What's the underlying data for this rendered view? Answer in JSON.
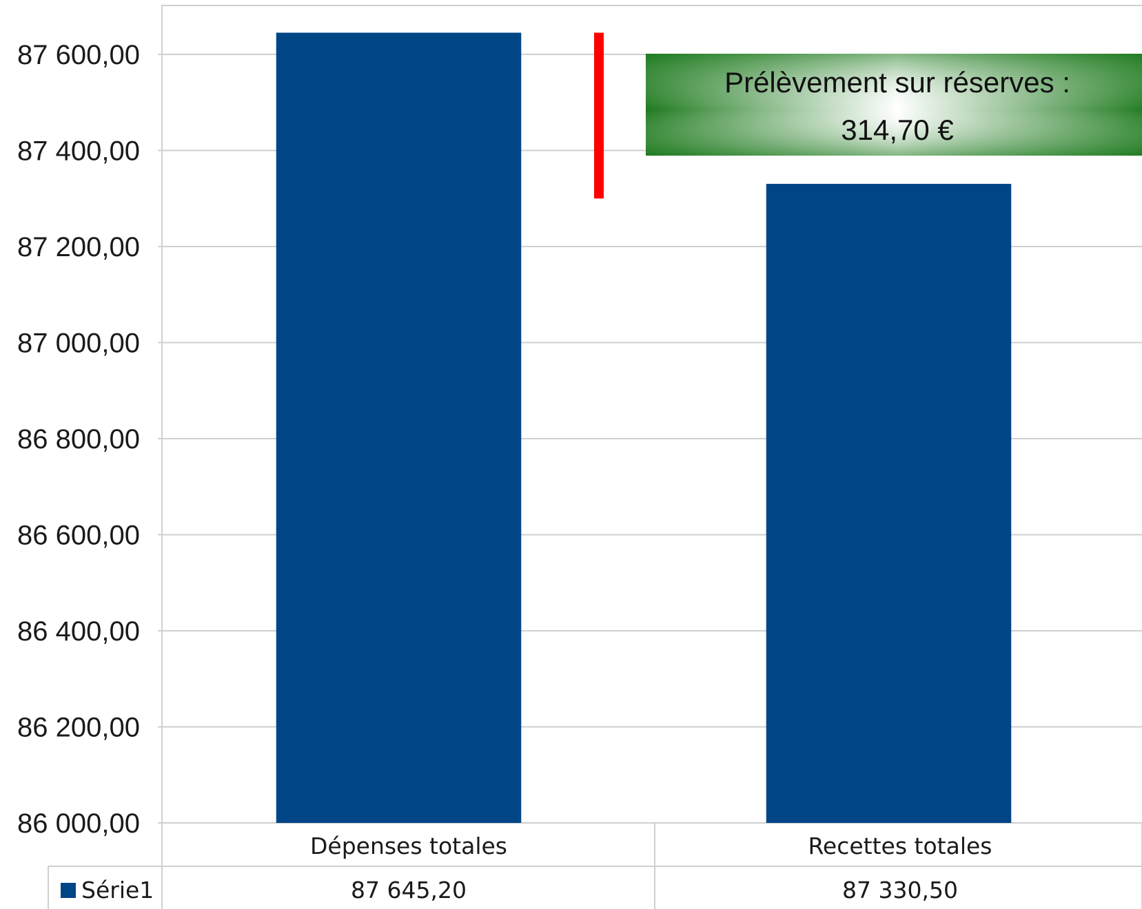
{
  "chart_data": {
    "type": "bar",
    "categories": [
      "Dépenses totales",
      "Recettes totales"
    ],
    "series": [
      {
        "name": "Série1",
        "values": [
          87645.2,
          87330.5
        ],
        "color": "#004586"
      }
    ],
    "value_labels": [
      "87 645,20",
      "87 330,50"
    ],
    "ylim": [
      86000,
      87600
    ],
    "yticks": [
      86000,
      86200,
      86400,
      86600,
      86800,
      87000,
      87200,
      87400,
      87600
    ],
    "ytick_labels": [
      "86 000,00",
      "86 200,00",
      "86 400,00",
      "86 600,00",
      "86 800,00",
      "87 000,00",
      "87 200,00",
      "87 400,00",
      "87 600,00"
    ],
    "grid": true,
    "data_table": true,
    "legend": {
      "label": "Série1",
      "placement": "data-table"
    },
    "annotation": {
      "lines": [
        "Prélèvement sur réserves :",
        "314,70 €"
      ],
      "difference_marker": {
        "from": 87645.2,
        "to": 87300,
        "color": "#ff0000"
      },
      "box_color": "#1e7a1e"
    }
  }
}
